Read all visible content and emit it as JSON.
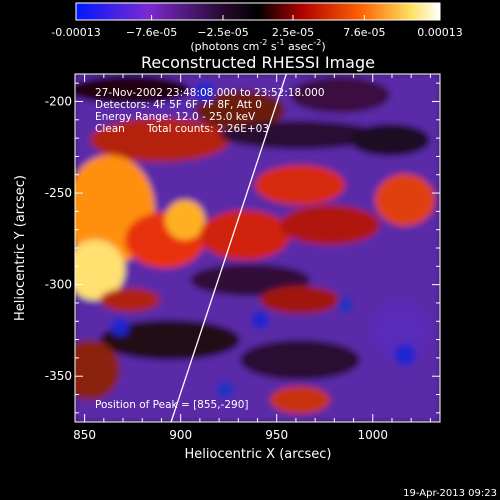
{
  "chart_data": {
    "type": "heatmap",
    "title": "Reconstructed RHESSI Image",
    "xlabel": "Heliocentric X (arcsec)",
    "ylabel": "Heliocentric Y (arcsec)",
    "xlim": [
      845,
      1035
    ],
    "ylim": [
      -375,
      -185
    ],
    "x_ticks": [
      850,
      900,
      950,
      1000
    ],
    "y_ticks": [
      -200,
      -250,
      -300,
      -350
    ],
    "colorbar": {
      "range": [
        -0.00013,
        0.00013
      ],
      "ticks": [
        -0.00013,
        -7.6e-05,
        -2.5e-05,
        2.5e-05,
        7.6e-05,
        0.00013
      ],
      "tick_labels": [
        "-0.00013",
        "−7.6e-05",
        "−2.5e-05",
        "2.5e-05",
        "7.6e-05",
        "0.00013"
      ],
      "unit_main": "(photons cm",
      "unit_exp1": "-2",
      "unit_mid": " s",
      "unit_exp2": "-1",
      "unit_mid2": " asec",
      "unit_exp3": "-2",
      "unit_end": ")"
    },
    "annotations": {
      "time_range": "27-Nov-2002 23:48:08.000 to 23:52:18.000",
      "detectors": "Detectors: 4F 5F 6F 7F 8F, Att 0",
      "energy": "Energy Range: 12.0 - 25.0 keV",
      "clean": "Clean",
      "counts": "Total counts: 2.26E+03",
      "peak": "Position of Peak = [855,-290]"
    },
    "limb_line": [
      [
        895,
        -375
      ],
      [
        955,
        -185
      ]
    ],
    "peak_position": [
      855,
      -290
    ],
    "color_scale": [
      "#1020c0",
      "#5a2ab0",
      "#3a1a5a",
      "#000000",
      "#7a0000",
      "#d02010",
      "#ff8000",
      "#ffe060",
      "#ffffff"
    ]
  },
  "footer": {
    "date": "19-Apr-2013 09:23"
  }
}
